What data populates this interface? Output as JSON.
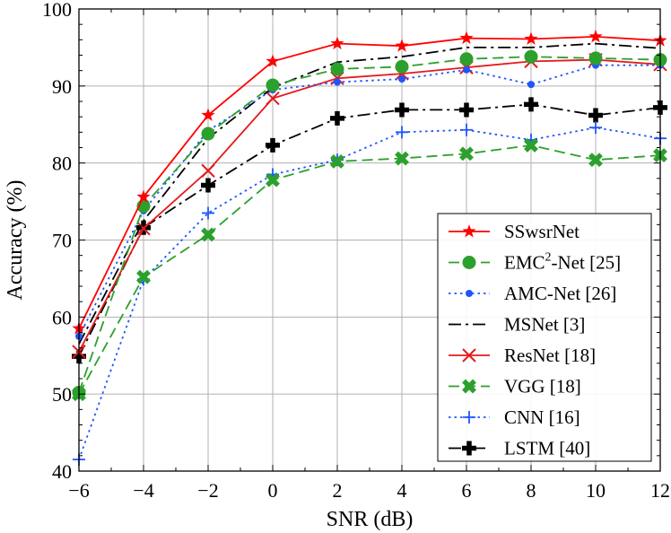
{
  "chart_data": {
    "type": "line",
    "title": "",
    "xlabel": "SNR (dB)",
    "ylabel": "Accuracy (%)",
    "xlim": [
      -6,
      12
    ],
    "ylim": [
      40,
      100
    ],
    "xticks": [
      -6,
      -4,
      -2,
      0,
      2,
      4,
      6,
      8,
      10,
      12
    ],
    "yticks": [
      40,
      50,
      60,
      70,
      80,
      90,
      100
    ],
    "xtick_labels": [
      "−6",
      "−4",
      "−2",
      "0",
      "2",
      "4",
      "6",
      "8",
      "10",
      "12"
    ],
    "ytick_labels": [
      "40",
      "50",
      "60",
      "70",
      "80",
      "90",
      "100"
    ],
    "grid": true,
    "legend_position": "lower-right",
    "x": [
      -6,
      -4,
      -2,
      0,
      2,
      4,
      6,
      8,
      10,
      12
    ],
    "series": [
      {
        "name": "SSwsrNet",
        "label_main": "SSwsrNet",
        "label_sup": "",
        "label_tail": "",
        "color": "#ff0000",
        "dash": "solid",
        "marker": "star",
        "values": [
          58.5,
          75.6,
          86.2,
          93.2,
          95.5,
          95.2,
          96.2,
          96.1,
          96.4,
          95.9
        ]
      },
      {
        "name": "EMC2-Net [25]",
        "label_main": "EMC",
        "label_sup": "2",
        "label_tail": "-Net [25]",
        "color": "#2ca02c",
        "dash": "dashed",
        "marker": "circle",
        "values": [
          50.2,
          74.4,
          83.8,
          90.1,
          92.2,
          92.5,
          93.5,
          93.8,
          93.6,
          93.4
        ]
      },
      {
        "name": "AMC-Net [26]",
        "label_main": "AMC-Net [26]",
        "label_sup": "",
        "label_tail": "",
        "color": "#1f55ff",
        "dash": "dotted",
        "marker": "dot",
        "values": [
          57.5,
          73.8,
          84.2,
          89.5,
          90.5,
          90.9,
          92.1,
          90.2,
          92.7,
          92.7
        ]
      },
      {
        "name": "MSNet [3]",
        "label_main": "MSNet [3]",
        "label_sup": "",
        "label_tail": "",
        "color": "#000000",
        "dash": "dashdot",
        "marker": "none",
        "values": [
          56.5,
          72.5,
          83.2,
          89.8,
          93.1,
          93.8,
          95.0,
          95.0,
          95.5,
          94.9
        ]
      },
      {
        "name": "ResNet [18]",
        "label_main": "ResNet [18]",
        "label_sup": "",
        "label_tail": "",
        "color": "#e41a1c",
        "dash": "solid",
        "marker": "x",
        "values": [
          55.5,
          71.5,
          79.0,
          88.4,
          91.0,
          91.6,
          92.4,
          93.2,
          93.4,
          92.8
        ]
      },
      {
        "name": "VGG [18]",
        "label_main": "VGG [18]",
        "label_sup": "",
        "label_tail": "",
        "color": "#2ca02c",
        "dash": "dashed",
        "marker": "xthick",
        "values": [
          50.0,
          65.2,
          70.7,
          77.8,
          80.2,
          80.6,
          81.2,
          82.3,
          80.4,
          81.0
        ]
      },
      {
        "name": "CNN [16]",
        "label_main": "CNN [16]",
        "label_sup": "",
        "label_tail": "",
        "color": "#1f55ff",
        "dash": "dotted",
        "marker": "plus",
        "values": [
          41.5,
          64.9,
          73.5,
          78.5,
          80.4,
          84.0,
          84.3,
          83.0,
          84.6,
          83.2
        ]
      },
      {
        "name": "LSTM [40]",
        "label_main": "LSTM [40]",
        "label_sup": "",
        "label_tail": "",
        "color": "#000000",
        "dash": "dashdot",
        "marker": "plusthick",
        "values": [
          54.9,
          71.6,
          77.1,
          82.3,
          85.8,
          86.9,
          86.9,
          87.6,
          86.2,
          87.2
        ]
      }
    ]
  }
}
